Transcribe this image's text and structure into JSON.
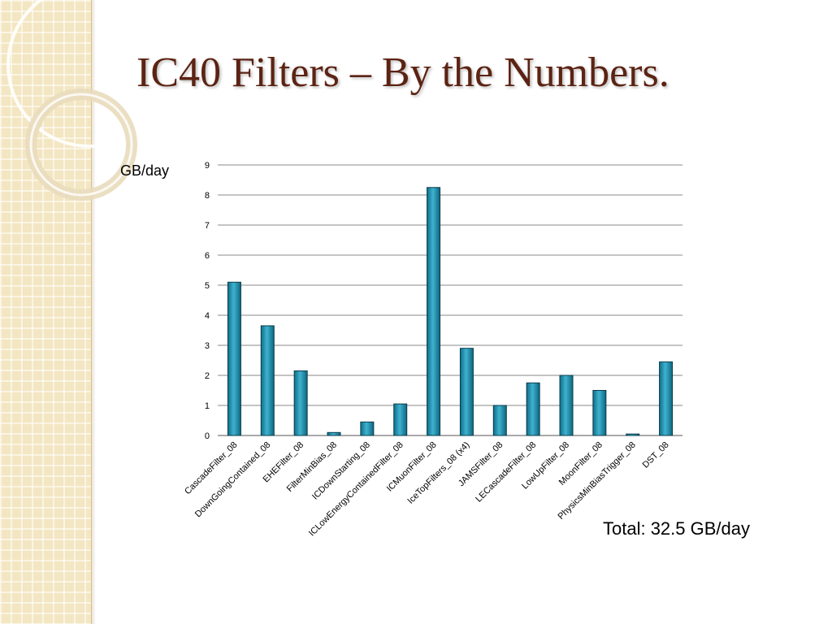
{
  "slide": {
    "title": "IC40 Filters – By the Numbers.",
    "total_note": "Total: 32.5 GB/day"
  },
  "theme": {
    "title_color": "#5c2313",
    "bar_color": "#1b8aa8",
    "panel_color": "#f3e6c2"
  },
  "chart_data": {
    "type": "bar",
    "ylabel": "GB/day",
    "xlabel": "",
    "ylim": [
      0,
      9
    ],
    "yticks": [
      0,
      1,
      2,
      3,
      4,
      5,
      6,
      7,
      8,
      9
    ],
    "grid": true,
    "categories": [
      "CascadeFilter_08",
      "DownGoingContained_08",
      "EHEFilter_08",
      "FilterMinBias_08",
      "ICDownStarting_08",
      "ICLowEnergyContainedFilter_08",
      "ICMuonFilter_08",
      "IceTopFilters_08 (x4)",
      "JAMSFilter_08",
      "LECascadeFilter_08",
      "LowUpFilter_08",
      "MoonFilter_08",
      "PhysicsMinBiasTrigger_08",
      "DST_08"
    ],
    "values": [
      5.1,
      3.65,
      2.15,
      0.1,
      0.45,
      1.05,
      8.25,
      2.9,
      1.0,
      1.75,
      2.0,
      1.5,
      0.05,
      2.45
    ]
  }
}
